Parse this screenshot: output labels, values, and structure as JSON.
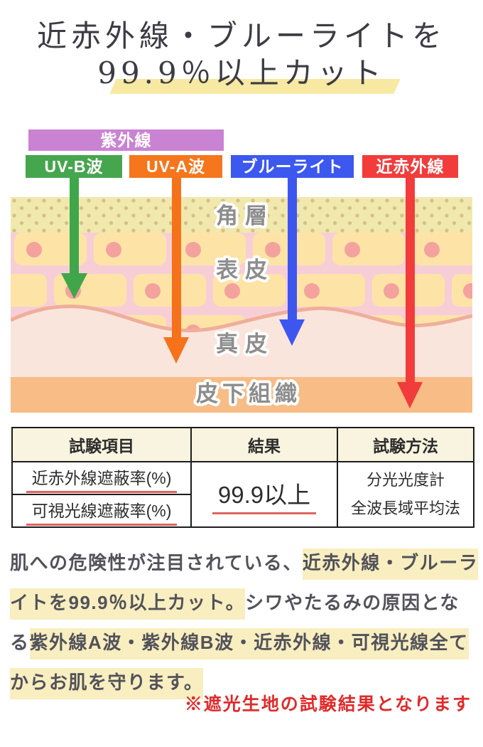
{
  "title": {
    "line1": "近赤外線・ブルーライトを",
    "line2": "99.9％以上カット"
  },
  "diagram": {
    "labels": {
      "uv": "紫外線",
      "uvb": "UV-B波",
      "uva": "UV-A波",
      "blue_light": "ブルーライト",
      "nir": "近赤外線"
    },
    "layers": {
      "stratum_corneum": "角層",
      "epidermis": "表皮",
      "dermis": "真皮",
      "subcutaneous": "皮下組織"
    },
    "colors": {
      "uv_box": "#ca82d2",
      "uvb_box": "#46a64e",
      "uva_box": "#f5761c",
      "blue_box": "#3c58ef",
      "nir_box": "#f23c3c",
      "stratum_bg": "#f1e8ae",
      "epidermis_brick": "#fde4a6",
      "epidermis_mortar": "#f7ced6",
      "dermis_bg": "#fae5dc",
      "subcutaneous_bg": "#f8bc86"
    }
  },
  "table": {
    "headers": [
      "試験項目",
      "結果",
      "試験方法"
    ],
    "rows": [
      {
        "item": "近赤外線遮蔽率(%)"
      },
      {
        "item": "可視光線遮蔽率(%)"
      }
    ],
    "result": "99.9以上",
    "method": [
      "分光光度計",
      "全波長域平均法"
    ]
  },
  "paragraph": {
    "lines": [
      [
        {
          "t": "肌への危険性が注目されている、",
          "h": false
        },
        {
          "t": "近赤外線・ブルーラ",
          "h": true
        }
      ],
      [
        {
          "t": "イトを99.9％以上カット。",
          "h": true
        },
        {
          "t": "シワやたるみの原因とな",
          "h": false
        }
      ],
      [
        {
          "t": "る",
          "h": false
        },
        {
          "t": "紫外線A波・紫外線B波・近赤外線・可視光線全て",
          "h": true
        }
      ],
      [
        {
          "t": "からお肌を守ります。",
          "h": true
        }
      ]
    ],
    "highlight_color": "#f8eec0"
  },
  "note": {
    "text": "※遮光生地の試験結果となります",
    "color": "#e02b2b"
  }
}
